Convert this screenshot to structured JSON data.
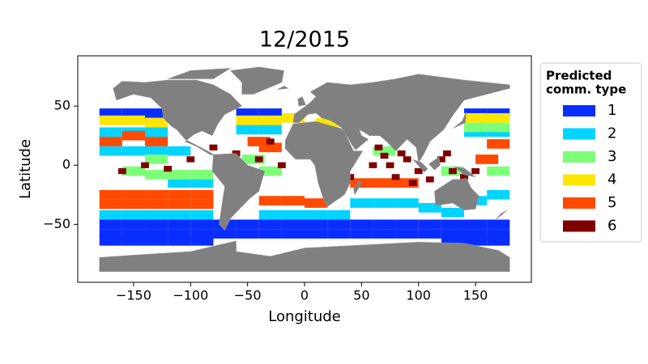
{
  "chart_data": {
    "type": "scatter",
    "title": "12/2015",
    "x_label": "Longitude",
    "y_label": "Latitude",
    "xlim": [
      -199,
      199
    ],
    "ylim": [
      -99,
      92.5
    ],
    "xticks": [
      {
        "value": -150,
        "label": "−150"
      },
      {
        "value": -100,
        "label": "−100"
      },
      {
        "value": -50,
        "label": "−50"
      },
      0,
      50,
      100,
      150
    ],
    "yticks": [
      {
        "value": -50,
        "label": "−50"
      },
      0,
      50
    ],
    "legend_title": [
      "Predicted",
      "comm. type"
    ],
    "legend_position": "outside right",
    "series": [
      {
        "name": "1",
        "color": "#0a2dff",
        "x": [
          -170,
          -150,
          -130,
          -110,
          -90,
          -70,
          -50,
          -30,
          -10,
          10,
          30,
          50,
          70,
          90,
          110,
          130,
          150,
          170,
          -170,
          -150,
          -130,
          -110,
          -90,
          -70,
          -50,
          -30,
          -10,
          10,
          30,
          50,
          70,
          90,
          110,
          130,
          150,
          170,
          -170,
          -150,
          -130,
          -110,
          -90,
          130,
          150,
          170,
          -170,
          -150,
          -130,
          -50,
          -30,
          150,
          170
        ],
        "y": [
          -50,
          -50,
          -50,
          -50,
          -50,
          -50,
          -50,
          -50,
          -50,
          -50,
          -50,
          -50,
          -50,
          -50,
          -50,
          -50,
          -50,
          -50,
          -58,
          -58,
          -58,
          -58,
          -58,
          -58,
          -58,
          -58,
          -58,
          -58,
          -58,
          -58,
          -58,
          -58,
          -58,
          -58,
          -58,
          -58,
          -64,
          -64,
          -64,
          -64,
          -64,
          -64,
          -64,
          -64,
          44,
          44,
          44,
          44,
          44,
          44,
          44
        ]
      },
      {
        "name": "2",
        "color": "#00d4ff",
        "x": [
          -170,
          -150,
          -130,
          150,
          170,
          -170,
          -150,
          -130,
          -110,
          -170,
          -150,
          -130,
          -110,
          -90,
          -30,
          -10,
          10,
          30,
          50,
          70,
          90,
          110,
          130,
          150,
          170,
          -50,
          -30,
          -110,
          -90
        ],
        "y": [
          28,
          28,
          28,
          28,
          28,
          12,
          12,
          12,
          12,
          -42,
          -42,
          -42,
          -42,
          -42,
          -42,
          -42,
          -42,
          -42,
          -32,
          -32,
          -32,
          -36,
          -40,
          -30,
          -25,
          30,
          30,
          -15,
          -15
        ]
      },
      {
        "name": "3",
        "color": "#7dff7a",
        "x": [
          -150,
          -130,
          -110,
          -90,
          -30,
          -45,
          70,
          130,
          170,
          170,
          150,
          -130
        ],
        "y": [
          -5,
          -8,
          -8,
          -8,
          -5,
          5,
          12,
          -5,
          -5,
          32,
          32,
          5
        ]
      },
      {
        "name": "4",
        "color": "#ffe600",
        "x": [
          -170,
          -150,
          -130,
          -50,
          -30,
          -10,
          150,
          170,
          20
        ],
        "y": [
          38,
          38,
          36,
          38,
          38,
          40,
          40,
          40,
          36
        ]
      },
      {
        "name": "5",
        "color": "#ff4a00",
        "x": [
          -170,
          -150,
          -130,
          -110,
          -90,
          -170,
          -150,
          -130,
          -110,
          -90,
          -30,
          -10,
          10,
          -170,
          -150,
          -130,
          -40,
          -30,
          170,
          160,
          50,
          70,
          90
        ],
        "y": [
          -25,
          -25,
          -25,
          -25,
          -25,
          -33,
          -33,
          -33,
          -33,
          -33,
          -30,
          -30,
          -32,
          20,
          25,
          20,
          20,
          15,
          18,
          5,
          -15,
          -15,
          -15
        ]
      },
      {
        "name": "6",
        "color": "#800000",
        "x": [
          65,
          70,
          85,
          90,
          75,
          80,
          100,
          120,
          130,
          140,
          -60,
          -40,
          -20,
          -160,
          -140,
          -100,
          -30,
          -10,
          150,
          -80,
          40,
          60,
          110,
          125,
          -120,
          95
        ],
        "y": [
          15,
          8,
          10,
          5,
          0,
          -10,
          -5,
          5,
          -5,
          -10,
          10,
          5,
          0,
          -5,
          0,
          5,
          20,
          15,
          -5,
          15,
          -10,
          0,
          -12,
          10,
          -3,
          -15
        ]
      }
    ]
  }
}
